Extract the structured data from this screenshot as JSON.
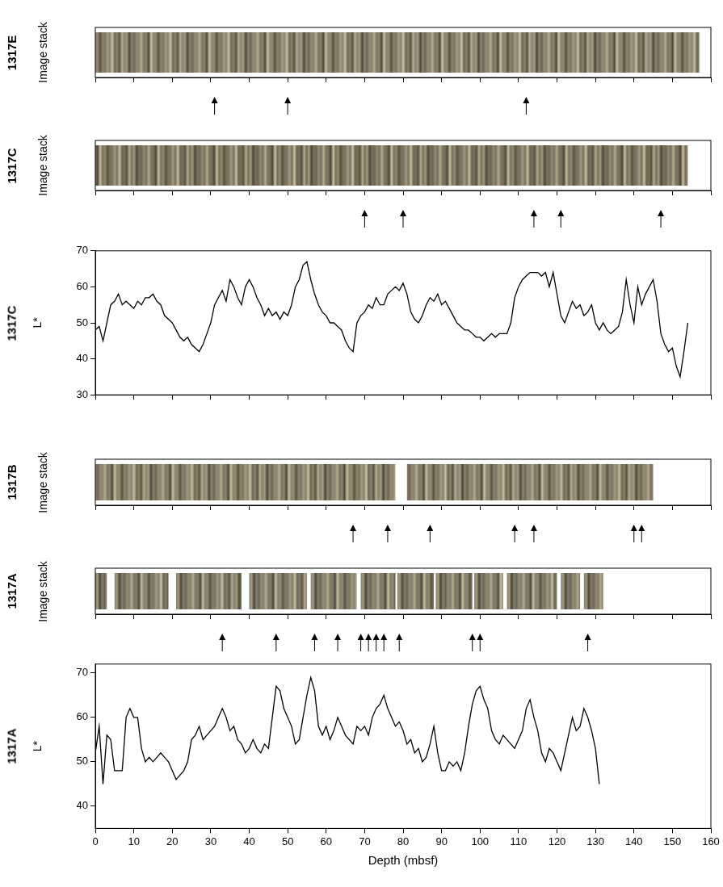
{
  "chart_data": [
    {
      "type": "image_stack",
      "panel": "1317E",
      "y_label": "Image stack",
      "segments": [
        [
          0,
          157
        ]
      ],
      "arrows": [
        31,
        50,
        112
      ],
      "xlim": [
        0,
        160
      ],
      "xticks": [
        0,
        10,
        20,
        30,
        40,
        50,
        60,
        70,
        80,
        90,
        100,
        110,
        120,
        130,
        140,
        150,
        160
      ],
      "tick_labels": false,
      "color": "#8c8270"
    },
    {
      "type": "image_stack",
      "panel": "1317C",
      "y_label": "Image stack",
      "segments": [
        [
          0,
          154
        ]
      ],
      "arrows": [
        70,
        80,
        114,
        121,
        147
      ],
      "xlim": [
        0,
        160
      ],
      "xticks": [
        0,
        10,
        20,
        30,
        40,
        50,
        60,
        70,
        80,
        90,
        100,
        110,
        120,
        130,
        140,
        150,
        160
      ],
      "tick_labels": false,
      "color": "#7a6f5e"
    },
    {
      "type": "line",
      "panel": "1317C",
      "y_label": "L*",
      "color": "#000000",
      "x": [
        0,
        1,
        2,
        3,
        4,
        5,
        6,
        7,
        8,
        9,
        10,
        11,
        12,
        13,
        14,
        15,
        16,
        17,
        18,
        19,
        20,
        21,
        22,
        23,
        24,
        25,
        26,
        27,
        28,
        29,
        30,
        31,
        32,
        33,
        34,
        35,
        36,
        37,
        38,
        39,
        40,
        41,
        42,
        43,
        44,
        45,
        46,
        47,
        48,
        49,
        50,
        51,
        52,
        53,
        54,
        55,
        56,
        57,
        58,
        59,
        60,
        61,
        62,
        63,
        64,
        65,
        66,
        67,
        68,
        69,
        70,
        71,
        72,
        73,
        74,
        75,
        76,
        77,
        78,
        79,
        80,
        81,
        82,
        83,
        84,
        85,
        86,
        87,
        88,
        89,
        90,
        91,
        92,
        93,
        94,
        95,
        96,
        97,
        98,
        99,
        100,
        101,
        102,
        103,
        104,
        105,
        106,
        107,
        108,
        109,
        110,
        111,
        112,
        113,
        114,
        115,
        116,
        117,
        118,
        119,
        120,
        121,
        122,
        123,
        124,
        125,
        126,
        127,
        128,
        129,
        130,
        131,
        132,
        133,
        134,
        135,
        136,
        137,
        138,
        139,
        140,
        141,
        142,
        143,
        144,
        145,
        146,
        147,
        148,
        149,
        150,
        151,
        152,
        153,
        154
      ],
      "values": [
        48,
        49,
        45,
        50,
        55,
        56,
        58,
        55,
        56,
        55,
        54,
        56,
        55,
        57,
        57,
        58,
        56,
        55,
        52,
        51,
        50,
        48,
        46,
        45,
        46,
        44,
        43,
        42,
        44,
        47,
        50,
        55,
        57,
        59,
        56,
        62,
        60,
        57,
        55,
        60,
        62,
        60,
        57,
        55,
        52,
        54,
        52,
        53,
        51,
        53,
        52,
        55,
        60,
        62,
        66,
        67,
        62,
        58,
        55,
        53,
        52,
        50,
        50,
        49,
        48,
        45,
        43,
        42,
        50,
        52,
        53,
        55,
        54,
        57,
        55,
        55,
        58,
        59,
        60,
        59,
        61,
        58,
        53,
        51,
        50,
        52,
        55,
        57,
        56,
        58,
        55,
        56,
        54,
        52,
        50,
        49,
        48,
        48,
        47,
        46,
        46,
        45,
        46,
        47,
        46,
        47,
        47,
        47,
        50,
        57,
        60,
        62,
        63,
        64,
        64,
        64,
        63,
        64,
        60,
        64,
        58,
        52,
        50,
        53,
        56,
        54,
        55,
        52,
        53,
        55,
        50,
        48,
        50,
        48,
        47,
        48,
        49,
        53,
        62,
        55,
        50,
        60,
        55,
        58,
        60,
        62,
        56,
        47,
        44,
        42,
        43,
        38,
        35,
        42,
        50
      ],
      "xlim": [
        0,
        160
      ],
      "xticks": [
        0,
        10,
        20,
        30,
        40,
        50,
        60,
        70,
        80,
        90,
        100,
        110,
        120,
        130,
        140,
        150,
        160
      ],
      "ylim": [
        30,
        70
      ],
      "yticks": [
        30,
        40,
        50,
        60,
        70
      ],
      "tick_labels": "y"
    },
    {
      "type": "image_stack",
      "panel": "1317B",
      "y_label": "Image stack",
      "segments": [
        [
          0,
          78
        ],
        [
          81,
          145
        ]
      ],
      "arrows": [
        67,
        76,
        87,
        109,
        114,
        140,
        142
      ],
      "xlim": [
        0,
        160
      ],
      "xticks": [
        0,
        10,
        20,
        30,
        40,
        50,
        60,
        70,
        80,
        90,
        100,
        110,
        120,
        130,
        140,
        150,
        160
      ],
      "tick_labels": false,
      "color": "#8c8270"
    },
    {
      "type": "image_stack",
      "panel": "1317A",
      "y_label": "Image stack",
      "segments": [
        [
          0,
          3
        ],
        [
          5,
          19
        ],
        [
          21,
          38
        ],
        [
          40,
          55
        ],
        [
          56,
          68
        ],
        [
          69,
          78
        ],
        [
          78.5,
          88
        ],
        [
          88.5,
          98
        ],
        [
          98.5,
          106
        ],
        [
          107,
          120
        ],
        [
          121,
          126
        ],
        [
          127,
          132
        ]
      ],
      "arrows": [
        33,
        47,
        57,
        63,
        69,
        71,
        73,
        75,
        79,
        98,
        100,
        128
      ],
      "xlim": [
        0,
        160
      ],
      "xticks": [
        0,
        10,
        20,
        30,
        40,
        50,
        60,
        70,
        80,
        90,
        100,
        110,
        120,
        130,
        140,
        150,
        160
      ],
      "tick_labels": false,
      "color": "#7f8070"
    },
    {
      "type": "line",
      "panel": "1317A",
      "y_label": "L*",
      "x_label": "Depth (mbsf)",
      "color": "#000000",
      "x": [
        0,
        1,
        2,
        3,
        4,
        5,
        6,
        7,
        8,
        9,
        10,
        11,
        12,
        13,
        14,
        15,
        16,
        17,
        18,
        19,
        20,
        21,
        22,
        23,
        24,
        25,
        26,
        27,
        28,
        29,
        30,
        31,
        32,
        33,
        34,
        35,
        36,
        37,
        38,
        39,
        40,
        41,
        42,
        43,
        44,
        45,
        46,
        47,
        48,
        49,
        50,
        51,
        52,
        53,
        54,
        55,
        56,
        57,
        58,
        59,
        60,
        61,
        62,
        63,
        64,
        65,
        66,
        67,
        68,
        69,
        70,
        71,
        72,
        73,
        74,
        75,
        76,
        77,
        78,
        79,
        80,
        81,
        82,
        83,
        84,
        85,
        86,
        87,
        88,
        89,
        90,
        91,
        92,
        93,
        94,
        95,
        96,
        97,
        98,
        99,
        100,
        101,
        102,
        103,
        104,
        105,
        106,
        107,
        108,
        109,
        110,
        111,
        112,
        113,
        114,
        115,
        116,
        117,
        118,
        119,
        120,
        121,
        122,
        123,
        124,
        125,
        126,
        127,
        128,
        129,
        130,
        131
      ],
      "values": [
        52,
        58,
        45,
        56,
        55,
        48,
        48,
        48,
        60,
        62,
        60,
        60,
        53,
        50,
        51,
        50,
        51,
        52,
        51,
        50,
        48,
        46,
        47,
        48,
        50,
        55,
        56,
        58,
        55,
        56,
        57,
        58,
        60,
        62,
        60,
        57,
        58,
        55,
        54,
        52,
        53,
        55,
        53,
        52,
        54,
        53,
        60,
        67,
        66,
        62,
        60,
        58,
        54,
        55,
        60,
        65,
        69,
        66,
        58,
        56,
        58,
        55,
        57,
        60,
        58,
        56,
        55,
        54,
        58,
        57,
        58,
        56,
        60,
        62,
        63,
        65,
        62,
        60,
        58,
        59,
        57,
        54,
        55,
        52,
        53,
        50,
        51,
        54,
        58,
        52,
        48,
        48,
        50,
        49,
        50,
        48,
        52,
        58,
        63,
        66,
        67,
        64,
        62,
        57,
        55,
        54,
        56,
        55,
        54,
        53,
        55,
        57,
        62,
        64,
        60,
        57,
        52,
        50,
        53,
        52,
        50,
        48,
        52,
        56,
        60,
        57,
        58,
        62,
        60,
        57,
        53,
        45
      ],
      "xlim": [
        0,
        160
      ],
      "xticks": [
        0,
        10,
        20,
        30,
        40,
        50,
        60,
        70,
        80,
        90,
        100,
        110,
        120,
        130,
        140,
        150,
        160
      ],
      "ylim": [
        35,
        72
      ],
      "yticks": [
        40,
        50,
        60,
        70
      ],
      "tick_labels": true
    }
  ]
}
